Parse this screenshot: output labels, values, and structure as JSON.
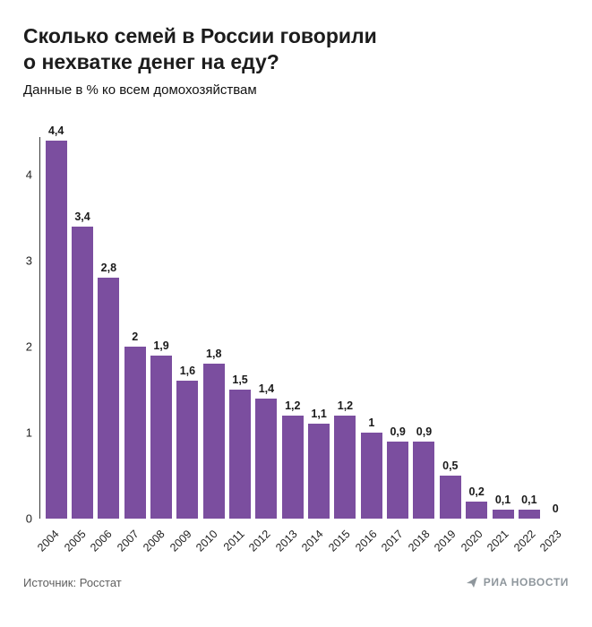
{
  "header": {
    "title_line1": "Сколько семей в России говорили",
    "title_line2": "о нехватке денег на еду?",
    "subtitle": "Данные в % ко всем домохозяйствам"
  },
  "chart_data": {
    "type": "bar",
    "title": "Сколько семей в России говорили о нехватке денег на еду?",
    "subtitle": "Данные в % ко всем домохозяйствам",
    "categories": [
      "2004",
      "2005",
      "2006",
      "2007",
      "2008",
      "2009",
      "2010",
      "2011",
      "2012",
      "2013",
      "2014",
      "2015",
      "2016",
      "2017",
      "2018",
      "2019",
      "2020",
      "2021",
      "2022",
      "2023"
    ],
    "values": [
      4.4,
      3.4,
      2.8,
      2,
      1.9,
      1.6,
      1.8,
      1.5,
      1.4,
      1.2,
      1.1,
      1.2,
      1,
      0.9,
      0.9,
      0.5,
      0.2,
      0.1,
      0.1,
      0
    ],
    "value_labels": [
      "4,4",
      "3,4",
      "2,8",
      "2",
      "1,9",
      "1,6",
      "1,8",
      "1,5",
      "1,4",
      "1,2",
      "1,1",
      "1,2",
      "1",
      "0,9",
      "0,9",
      "0,5",
      "0,2",
      "0,1",
      "0,1",
      "0"
    ],
    "xlabel": "",
    "ylabel": "",
    "ylim": [
      0,
      4.5
    ],
    "yticks": [
      0,
      1,
      2,
      3,
      4
    ],
    "bar_color": "#7B4E9F",
    "grid": false,
    "legend": false
  },
  "footer": {
    "source": "Источник: Росстат",
    "logo_text": "РИА НОВОСТИ"
  }
}
